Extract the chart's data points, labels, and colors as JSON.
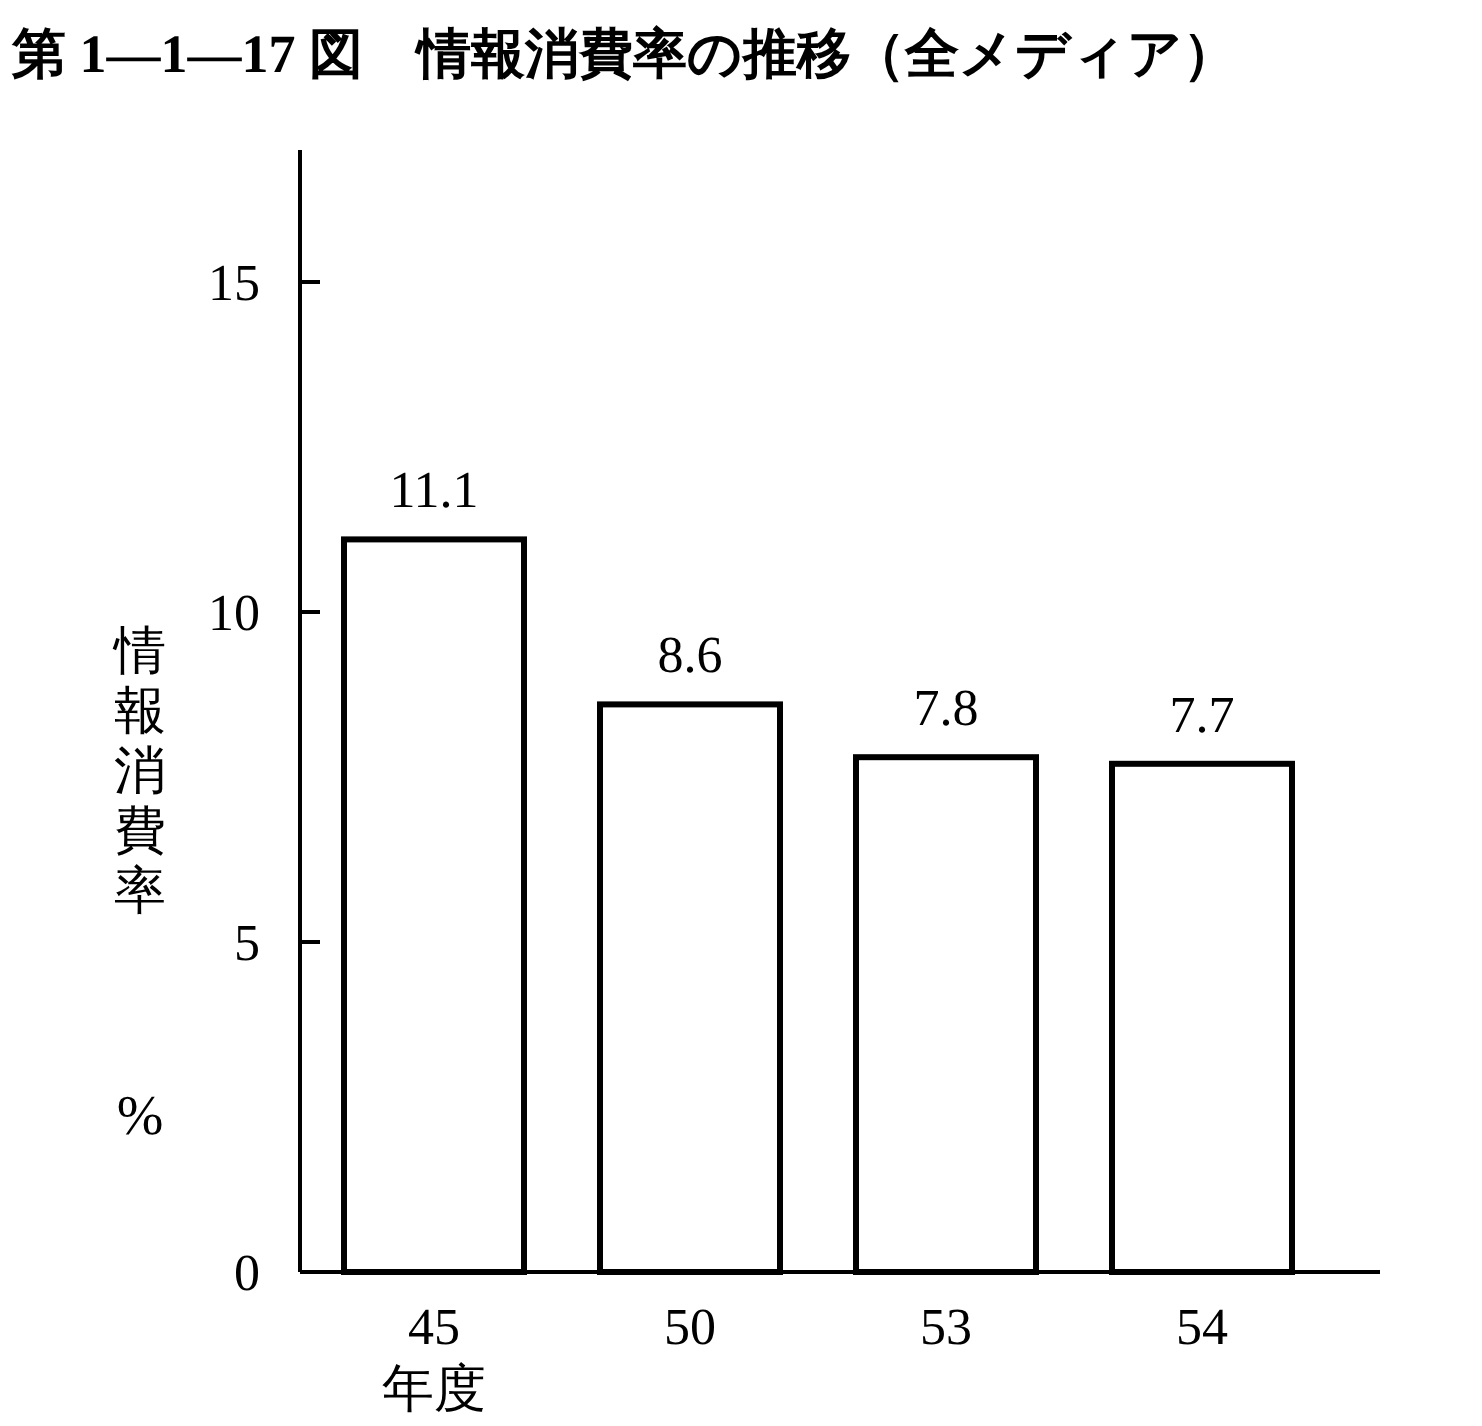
{
  "chart_data": {
    "type": "bar",
    "title": "第 1—1—17 図　情報消費率の推移（全メディア）",
    "xlabel": "年度",
    "ylabel": "情報消費率",
    "annotations": [
      "%"
    ],
    "categories": [
      "45",
      "50",
      "53",
      "54"
    ],
    "values": [
      11.1,
      8.6,
      7.8,
      7.7
    ],
    "color": "#ffffff",
    "ylim": [
      0,
      17
    ],
    "yticks": [
      0,
      5,
      10,
      15
    ],
    "data_labels": true
  }
}
